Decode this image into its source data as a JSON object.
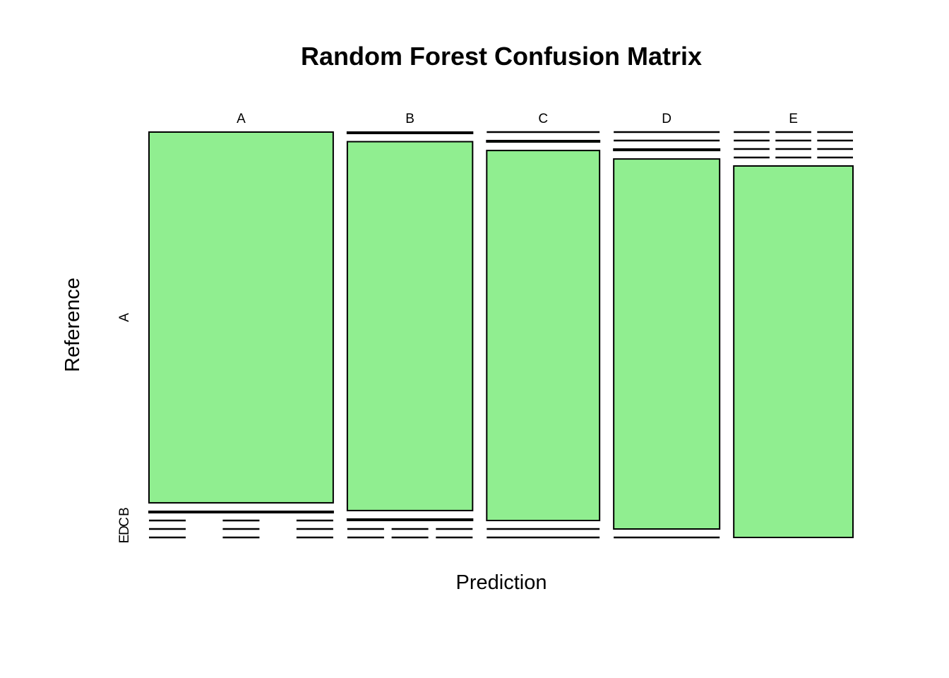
{
  "chart_data": {
    "type": "mosaic",
    "title": "Random Forest Confusion Matrix",
    "xlabel": "Prediction",
    "ylabel": "Reference",
    "categories": [
      "A",
      "B",
      "C",
      "D",
      "E"
    ],
    "row_tick_labels": [
      "A",
      "B",
      "C",
      "D",
      "E"
    ],
    "fill_color": "#90EE90",
    "column_shares": [
      0.2845,
      0.1935,
      0.1743,
      0.1636,
      0.1841
    ],
    "columns": [
      {
        "prediction": "A",
        "reference_shares": {
          "A": 0.998,
          "B": 0.002,
          "C": 0,
          "D": 0,
          "E": 0
        }
      },
      {
        "prediction": "B",
        "reference_shares": {
          "A": 0.003,
          "B": 0.993,
          "C": 0.004,
          "D": 0,
          "E": 0
        }
      },
      {
        "prediction": "C",
        "reference_shares": {
          "A": 0,
          "B": 0.004,
          "C": 0.996,
          "D": 0,
          "E": 0
        }
      },
      {
        "prediction": "D",
        "reference_shares": {
          "A": 0,
          "B": 0,
          "C": 0.004,
          "D": 0.996,
          "E": 0
        }
      },
      {
        "prediction": "E",
        "reference_shares": {
          "A": 0,
          "B": 0,
          "C": 0,
          "D": 0,
          "E": 1.0
        }
      }
    ]
  }
}
